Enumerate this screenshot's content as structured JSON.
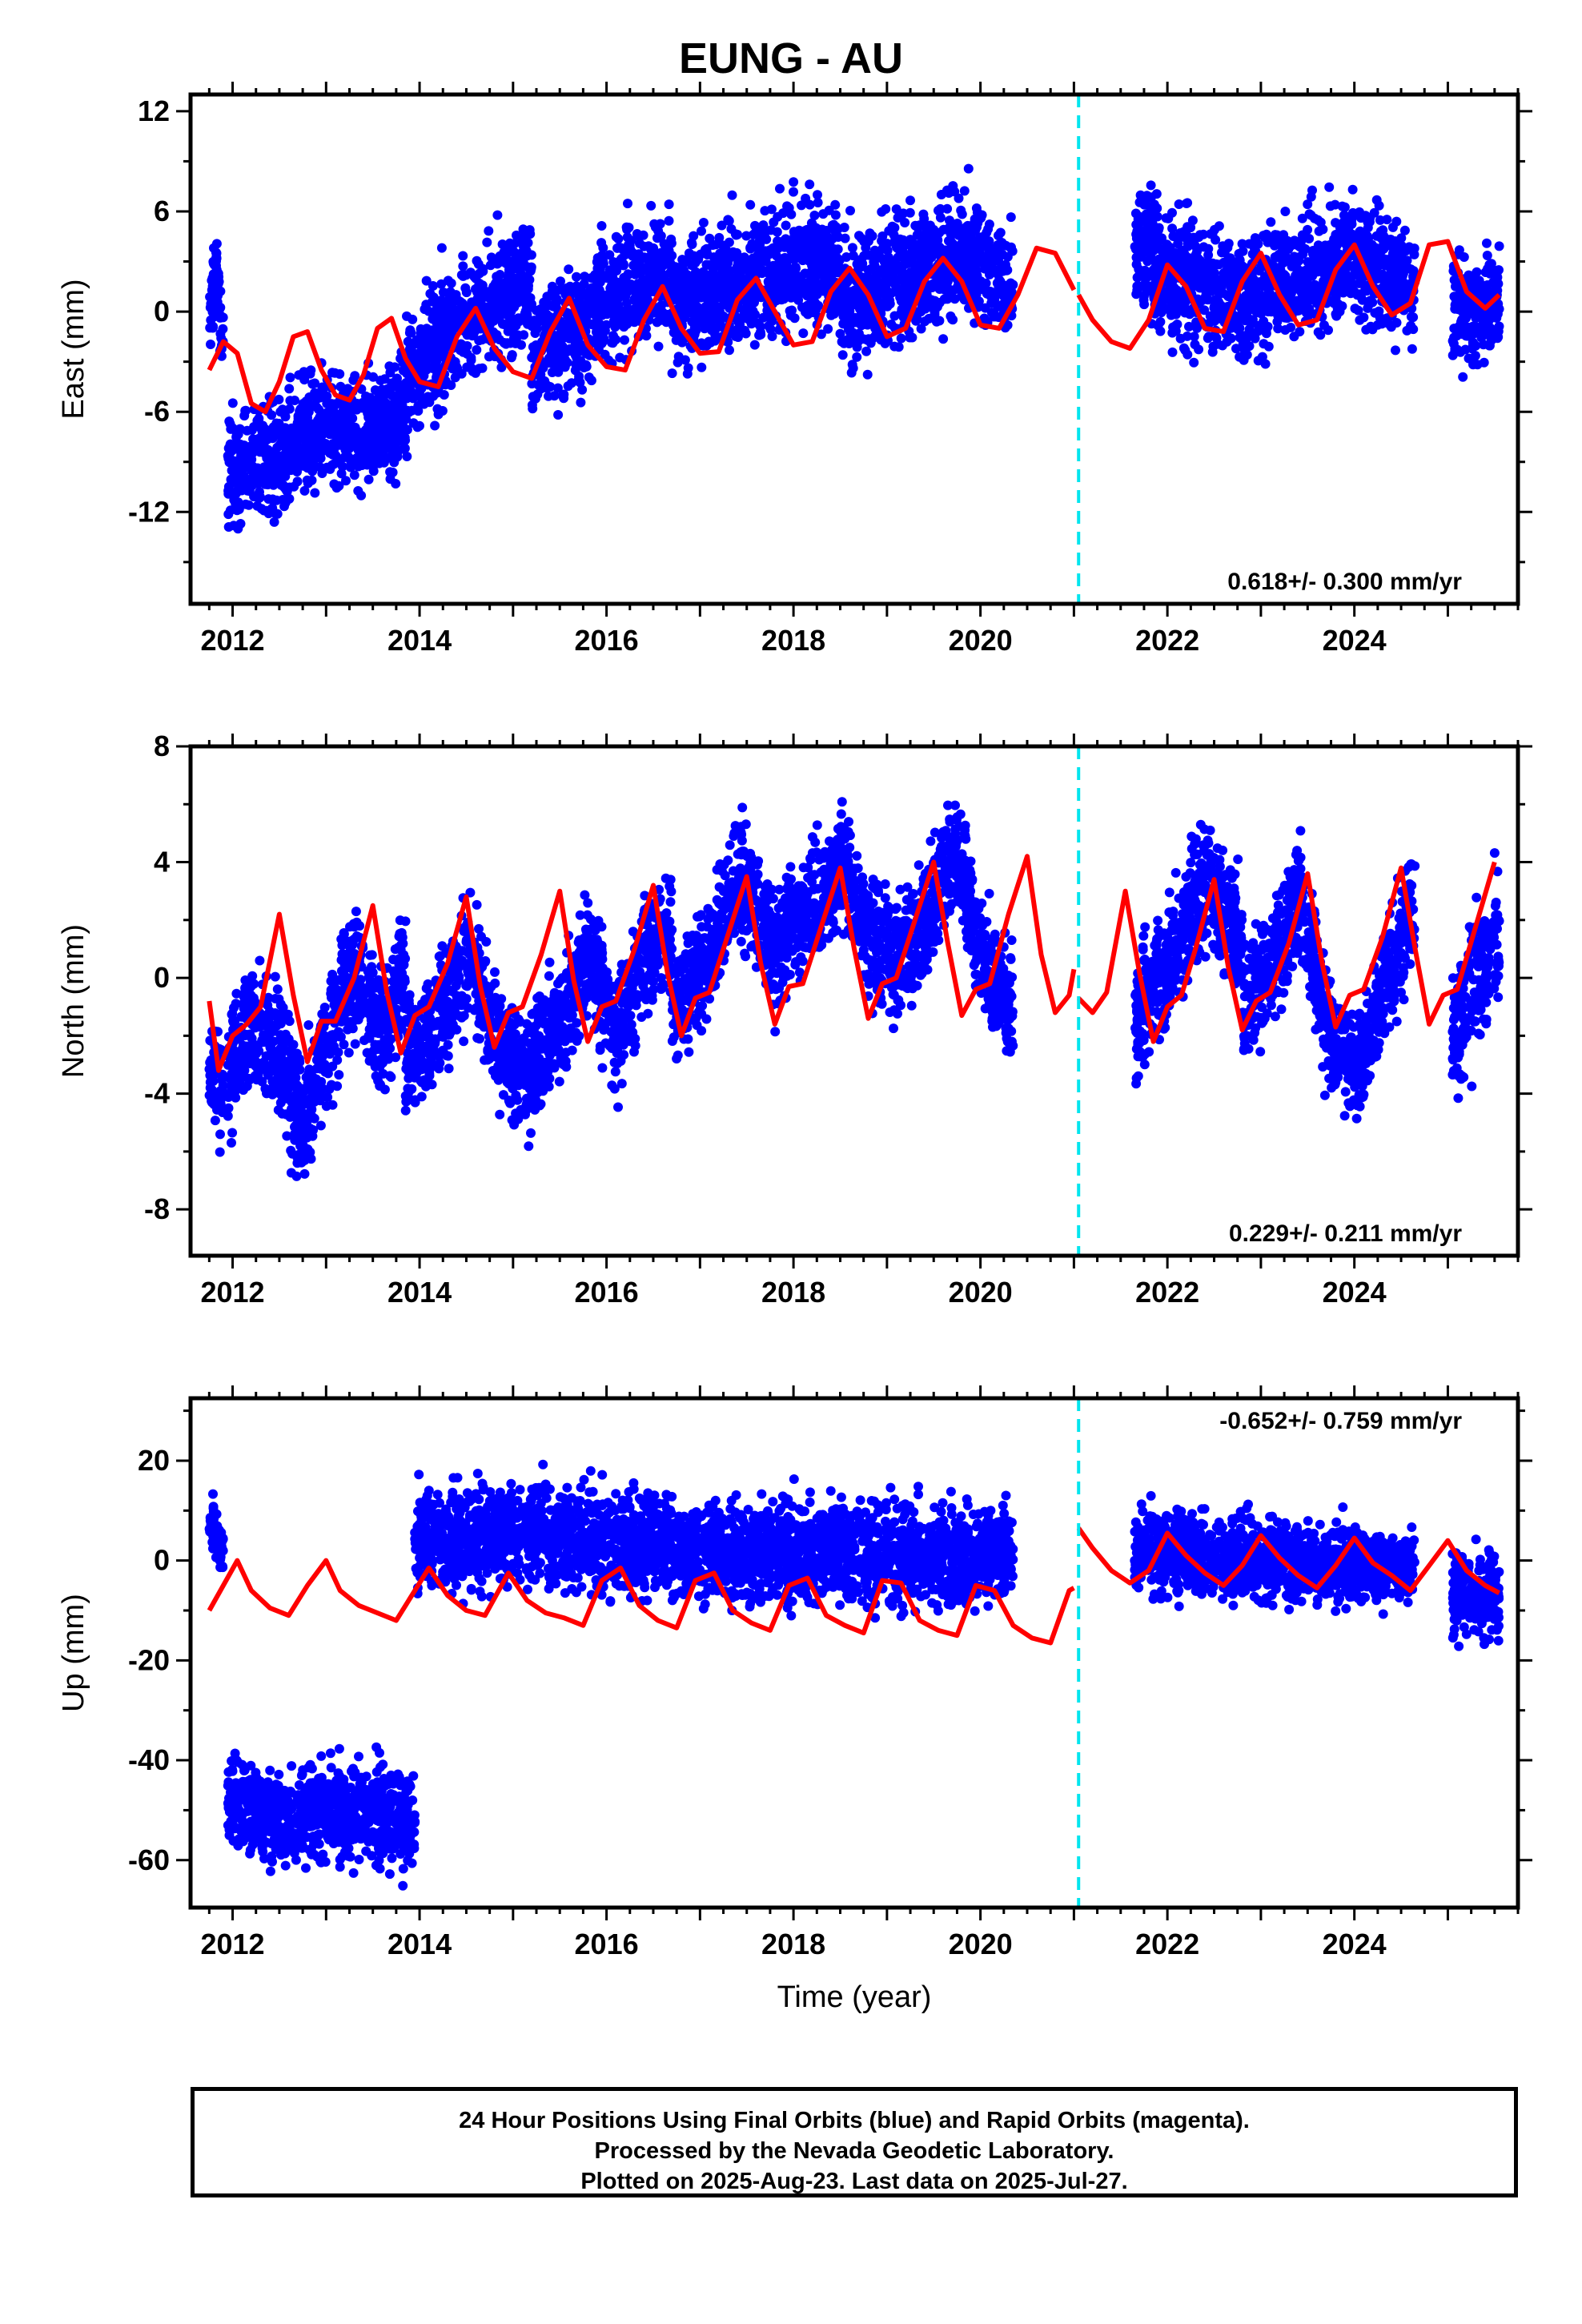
{
  "title": "EUNG - AU",
  "xlabel": "Time (year)",
  "footer": {
    "line1": "24 Hour Positions Using Final Orbits (blue) and Rapid Orbits (magenta).",
    "line2": "Processed by the Nevada Geodetic Laboratory.",
    "line3": "Plotted on 2025-Aug-23. Last data on 2025-Jul-27."
  },
  "colors": {
    "points": "#0000ff",
    "model": "#ff0000",
    "break": "#00e5ee",
    "axis": "#000000"
  },
  "chart_data": [
    {
      "type": "scatter",
      "ylabel": "East (mm)",
      "rate": "0.618+/- 0.300 mm/yr",
      "xlim": [
        2011.55,
        2025.75
      ],
      "ylim": [
        -17.5,
        13
      ],
      "xticks": [
        2012,
        2014,
        2016,
        2018,
        2020,
        2022,
        2024
      ],
      "yticks": [
        -12,
        -6,
        0,
        6,
        12
      ],
      "break_x": 2021.05,
      "model": [
        {
          "x": [
            2011.75,
            2011.9,
            2012.05,
            2012.2,
            2012.35,
            2012.5,
            2012.65,
            2012.8,
            2012.95,
            2013.1,
            2013.25,
            2013.4,
            2013.55,
            2013.7,
            2013.85,
            2014.0,
            2014.2,
            2014.4,
            2014.6,
            2014.8,
            2015.0,
            2015.2,
            2015.4,
            2015.6,
            2015.8,
            2016.0,
            2016.2,
            2016.4,
            2016.6,
            2016.8,
            2017.0,
            2017.2,
            2017.4,
            2017.6,
            2017.8,
            2018.0,
            2018.2,
            2018.4,
            2018.6,
            2018.8,
            2019.0,
            2019.2,
            2019.4,
            2019.6,
            2019.8,
            2020.0,
            2020.2,
            2020.4,
            2020.6,
            2020.8,
            2021.0
          ],
          "y": [
            -3.5,
            -1.8,
            -2.5,
            -5.5,
            -6.0,
            -4.2,
            -1.5,
            -1.2,
            -3.5,
            -5.0,
            -5.3,
            -3.8,
            -1.0,
            -0.4,
            -2.8,
            -4.2,
            -4.5,
            -1.5,
            0.2,
            -2.2,
            -3.6,
            -4.0,
            -1.2,
            0.8,
            -2.0,
            -3.3,
            -3.5,
            -0.5,
            1.5,
            -1.0,
            -2.5,
            -2.4,
            0.7,
            2.0,
            0.0,
            -2.0,
            -1.8,
            1.2,
            2.6,
            1.0,
            -1.5,
            -1.0,
            1.8,
            3.2,
            1.8,
            -0.8,
            -1.0,
            1.0,
            3.8,
            3.5,
            1.3
          ]
        },
        {
          "x": [
            2021.05,
            2021.2,
            2021.4,
            2021.6,
            2021.8,
            2022.0,
            2022.2,
            2022.4,
            2022.6,
            2022.8,
            2023.0,
            2023.2,
            2023.4,
            2023.6,
            2023.8,
            2024.0,
            2024.2,
            2024.4,
            2024.6,
            2024.8,
            2025.0,
            2025.2,
            2025.4,
            2025.55
          ],
          "y": [
            1.0,
            -0.5,
            -1.8,
            -2.2,
            -0.5,
            2.8,
            1.5,
            -1.0,
            -1.2,
            1.8,
            3.5,
            1.0,
            -0.8,
            -0.5,
            2.5,
            4.0,
            1.5,
            -0.2,
            0.5,
            4.0,
            4.2,
            1.2,
            0.2,
            1.0
          ]
        }
      ],
      "clusters": [
        {
          "x0": 2011.75,
          "x1": 2011.9,
          "ys": [
            -1.0,
            2.5,
            -2.0
          ],
          "spread": 1.6
        },
        {
          "x0": 2011.95,
          "x1": 2013.85,
          "ys": [
            -9.5,
            -9.0,
            -7.0,
            -7.0,
            -6.0
          ],
          "spread": 2.3
        },
        {
          "x0": 2013.85,
          "x1": 2015.2,
          "ys": [
            -4.5,
            -1.0,
            0.5,
            2.0
          ],
          "spread": 2.6
        },
        {
          "x0": 2015.2,
          "x1": 2016.7,
          "ys": [
            -2.5,
            -1.0,
            1.5,
            2.5
          ],
          "spread": 2.5
        },
        {
          "x0": 2016.7,
          "x1": 2018.5,
          "ys": [
            0.0,
            1.5,
            2.5,
            3.0
          ],
          "spread": 2.6
        },
        {
          "x0": 2018.5,
          "x1": 2020.35,
          "ys": [
            0.5,
            2.0,
            3.5,
            1.5
          ],
          "spread": 2.6
        },
        {
          "x0": 2021.65,
          "x1": 2022.8,
          "ys": [
            3.5,
            2.0,
            0.5
          ],
          "spread": 2.8
        },
        {
          "x0": 2022.8,
          "x1": 2024.65,
          "ys": [
            1.0,
            2.0,
            3.5,
            1.0
          ],
          "spread": 2.5
        },
        {
          "x0": 2025.05,
          "x1": 2025.55,
          "ys": [
            0.0,
            0.5
          ],
          "spread": 2.3
        }
      ]
    },
    {
      "type": "scatter",
      "ylabel": "North (mm)",
      "rate": "0.229+/- 0.211 mm/yr",
      "xlim": [
        2011.55,
        2025.75
      ],
      "ylim": [
        -9.6,
        8.0
      ],
      "xticks": [
        2012,
        2014,
        2016,
        2018,
        2020,
        2022,
        2024
      ],
      "yticks": [
        -8,
        -4,
        0,
        4,
        8
      ],
      "break_x": 2021.05,
      "model": [
        {
          "x": [
            2011.75,
            2011.85,
            2012.0,
            2012.15,
            2012.3,
            2012.5,
            2012.65,
            2012.8,
            2012.95,
            2013.1,
            2013.3,
            2013.5,
            2013.65,
            2013.8,
            2013.95,
            2014.1,
            2014.3,
            2014.5,
            2014.65,
            2014.8,
            2014.95,
            2015.1,
            2015.3,
            2015.5,
            2015.65,
            2015.8,
            2015.95,
            2016.1,
            2016.3,
            2016.5,
            2016.65,
            2016.8,
            2016.95,
            2017.1,
            2017.3,
            2017.5,
            2017.65,
            2017.8,
            2017.95,
            2018.1,
            2018.3,
            2018.5,
            2018.65,
            2018.8,
            2018.95,
            2019.1,
            2019.3,
            2019.5,
            2019.65,
            2019.8,
            2019.95,
            2020.1,
            2020.3,
            2020.5,
            2020.65,
            2020.8,
            2020.95,
            2021.0
          ],
          "y": [
            -0.8,
            -3.2,
            -2.0,
            -1.6,
            -1.0,
            2.2,
            -0.6,
            -2.9,
            -1.5,
            -1.5,
            0.0,
            2.5,
            -0.5,
            -2.6,
            -1.3,
            -1.0,
            0.5,
            2.8,
            -0.3,
            -2.4,
            -1.2,
            -1.0,
            0.8,
            3.0,
            -0.1,
            -2.2,
            -1.0,
            -0.8,
            1.0,
            3.2,
            0.2,
            -2.0,
            -0.7,
            -0.5,
            1.5,
            3.5,
            0.5,
            -1.6,
            -0.3,
            -0.2,
            1.8,
            3.8,
            1.0,
            -1.4,
            -0.2,
            0.0,
            2.0,
            4.0,
            1.2,
            -1.3,
            -0.4,
            -0.2,
            2.2,
            4.2,
            0.8,
            -1.2,
            -0.6,
            0.3
          ]
        },
        {
          "x": [
            2021.05,
            2021.2,
            2021.35,
            2021.55,
            2021.7,
            2021.85,
            2022.0,
            2022.15,
            2022.3,
            2022.5,
            2022.65,
            2022.8,
            2022.95,
            2023.1,
            2023.3,
            2023.5,
            2023.65,
            2023.8,
            2023.95,
            2024.1,
            2024.3,
            2024.5,
            2024.65,
            2024.8,
            2024.95,
            2025.1,
            2025.3,
            2025.5
          ],
          "y": [
            -0.7,
            -1.2,
            -0.5,
            3.0,
            0.2,
            -2.2,
            -1.0,
            -0.6,
            1.0,
            3.4,
            0.4,
            -1.8,
            -0.8,
            -0.5,
            1.2,
            3.6,
            0.6,
            -1.7,
            -0.6,
            -0.4,
            1.4,
            3.8,
            1.0,
            -1.6,
            -0.6,
            -0.4,
            1.8,
            4.0
          ]
        }
      ],
      "clusters": [
        {
          "x0": 2011.75,
          "x1": 2011.9,
          "ys": [
            -3.0,
            -4.0
          ],
          "spread": 1.4
        },
        {
          "x0": 2011.95,
          "x1": 2013.85,
          "ys": [
            -3.5,
            -1.5,
            -2.5,
            -5.0,
            -2.0,
            0.5,
            -2.0,
            0.5
          ],
          "spread": 1.5
        },
        {
          "x0": 2013.85,
          "x1": 2015.2,
          "ys": [
            -3.0,
            -1.5,
            1.0,
            -2.5,
            -3.5
          ],
          "spread": 1.5
        },
        {
          "x0": 2015.2,
          "x1": 2016.7,
          "ys": [
            -3.0,
            -1.5,
            1.0,
            -2.0,
            0.5,
            1.5
          ],
          "spread": 1.4
        },
        {
          "x0": 2016.7,
          "x1": 2018.5,
          "ys": [
            -1.0,
            0.5,
            3.5,
            1.0,
            2.5,
            3.5
          ],
          "spread": 1.4
        },
        {
          "x0": 2018.5,
          "x1": 2020.35,
          "ys": [
            4.5,
            1.5,
            0.5,
            2.0,
            4.5,
            0.5,
            -1.0
          ],
          "spread": 1.4
        },
        {
          "x0": 2021.65,
          "x1": 2022.8,
          "ys": [
            -1.5,
            0.5,
            3.5,
            1.0
          ],
          "spread": 1.4
        },
        {
          "x0": 2022.8,
          "x1": 2024.65,
          "ys": [
            -1.0,
            0.5,
            3.0,
            -2.0,
            -3.0,
            0.0,
            2.5
          ],
          "spread": 1.4
        },
        {
          "x0": 2025.05,
          "x1": 2025.55,
          "ys": [
            -2.5,
            0.0,
            1.5
          ],
          "spread": 1.5
        }
      ]
    },
    {
      "type": "scatter",
      "ylabel": "Up (mm)",
      "rate": "-0.652+/- 0.759 mm/yr",
      "xlim": [
        2011.55,
        2025.75
      ],
      "ylim": [
        -69.5,
        32.5
      ],
      "xticks": [
        2012,
        2014,
        2016,
        2018,
        2020,
        2022,
        2024
      ],
      "yticks": [
        -60,
        -40,
        -20,
        0,
        20
      ],
      "break_x": 2021.05,
      "model": [
        {
          "x": [
            2011.75,
            2011.9,
            2012.05,
            2012.2,
            2012.4,
            2012.6,
            2012.8,
            2013.0,
            2013.15,
            2013.35,
            2013.55,
            2013.75,
            2013.95,
            2014.1,
            2014.3,
            2014.5,
            2014.7,
            2014.95,
            2015.15,
            2015.35,
            2015.55,
            2015.75,
            2015.95,
            2016.15,
            2016.35,
            2016.55,
            2016.75,
            2016.95,
            2017.15,
            2017.35,
            2017.55,
            2017.75,
            2017.95,
            2018.15,
            2018.35,
            2018.55,
            2018.75,
            2018.95,
            2019.15,
            2019.35,
            2019.55,
            2019.75,
            2019.95,
            2020.15,
            2020.35,
            2020.55,
            2020.75,
            2020.95,
            2021.0
          ],
          "y": [
            -10.0,
            -5.0,
            0.0,
            -6.0,
            -9.5,
            -11.0,
            -5.0,
            0.0,
            -6.0,
            -9.0,
            -10.5,
            -12.0,
            -6.0,
            -1.5,
            -7.0,
            -10.0,
            -11.0,
            -2.5,
            -8.0,
            -10.5,
            -11.5,
            -13.0,
            -4.0,
            -1.5,
            -9.0,
            -12.0,
            -13.5,
            -4.0,
            -2.5,
            -10.0,
            -12.5,
            -14.0,
            -5.0,
            -3.5,
            -11.0,
            -13.0,
            -14.5,
            -4.0,
            -4.5,
            -12.0,
            -14.0,
            -15.0,
            -5.0,
            -6.0,
            -13.0,
            -15.5,
            -16.5,
            -6.0,
            -5.5
          ]
        },
        {
          "x": [
            2021.05,
            2021.2,
            2021.4,
            2021.6,
            2021.8,
            2022.0,
            2022.2,
            2022.4,
            2022.6,
            2022.8,
            2023.0,
            2023.2,
            2023.4,
            2023.6,
            2023.8,
            2024.0,
            2024.2,
            2024.4,
            2024.6,
            2024.8,
            2025.0,
            2025.2,
            2025.4,
            2025.55
          ],
          "y": [
            6.5,
            2.5,
            -2.0,
            -4.5,
            -2.0,
            5.5,
            1.0,
            -2.5,
            -5.0,
            -1.0,
            5.0,
            0.5,
            -3.0,
            -5.5,
            -1.0,
            4.5,
            -0.5,
            -3.0,
            -6.0,
            -1.0,
            4.0,
            -2.0,
            -5.0,
            -6.5
          ]
        }
      ],
      "clusters": [
        {
          "x0": 2011.75,
          "x1": 2011.9,
          "ys": [
            8.0,
            2.0
          ],
          "spread": 3.5
        },
        {
          "x0": 2011.95,
          "x1": 2013.95,
          "ys": [
            -48.0,
            -52.0,
            -50.0,
            -50.0,
            -52.0
          ],
          "spread": 6.5
        },
        {
          "x0": 2013.95,
          "x1": 2016.7,
          "ys": [
            5.0,
            4.0,
            6.0,
            5.0,
            3.0,
            5.0
          ],
          "spread": 7.0
        },
        {
          "x0": 2016.7,
          "x1": 2020.35,
          "ys": [
            2.0,
            1.0,
            2.0,
            1.5,
            0.5,
            2.0
          ],
          "spread": 7.0
        },
        {
          "x0": 2021.65,
          "x1": 2024.65,
          "ys": [
            2.0,
            1.0,
            0.0,
            -1.0,
            -2.0
          ],
          "spread": 5.5
        },
        {
          "x0": 2025.05,
          "x1": 2025.55,
          "ys": [
            -6.0,
            -8.0
          ],
          "spread": 6.0
        }
      ]
    }
  ]
}
